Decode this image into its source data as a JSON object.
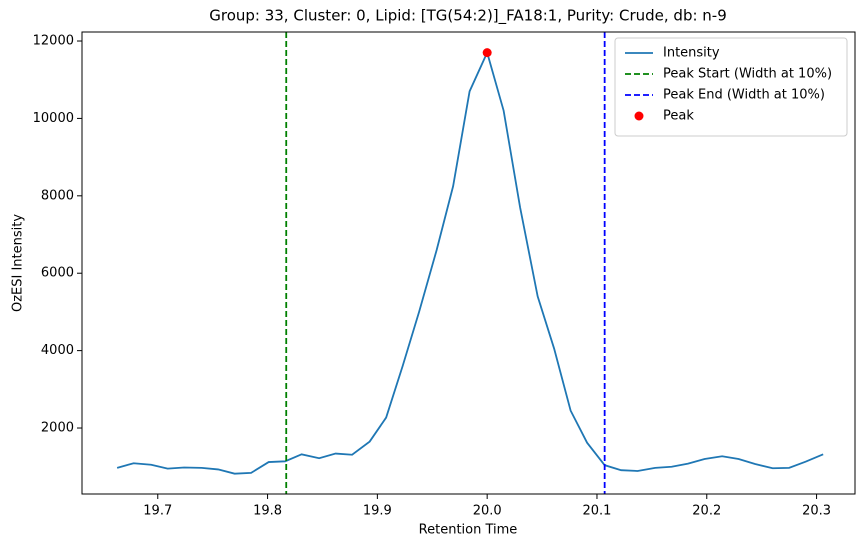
{
  "chart_data": {
    "type": "line",
    "title": "Group: 33, Cluster: 0, Lipid: [TG(54:2)]_FA18:1, Purity: Crude, db: n-9",
    "x_label": "Retention Time",
    "y_label": "OzESI Intensity",
    "xlim": [
      19.631,
      20.335
    ],
    "ylim": [
      295,
      12233
    ],
    "xticks": [
      19.7,
      19.8,
      19.9,
      {
        "value": 20,
        "label": "20.0"
      },
      20.1,
      20.2,
      20.3
    ],
    "yticks": [
      2000,
      4000,
      6000,
      8000,
      10000,
      12000
    ],
    "legend": "upper right",
    "series": [
      {
        "name": "Intensity",
        "color": "#1f77b4",
        "x": [
          19.663,
          19.678,
          19.694,
          19.709,
          19.724,
          19.74,
          19.755,
          19.77,
          19.785,
          19.801,
          19.816,
          19.831,
          19.847,
          19.862,
          19.877,
          19.893,
          19.908,
          19.923,
          19.938,
          19.954,
          19.969,
          19.984,
          20.0,
          20.015,
          20.03,
          20.046,
          20.061,
          20.076,
          20.091,
          20.107,
          20.122,
          20.137,
          20.153,
          20.168,
          20.183,
          20.198,
          20.214,
          20.229,
          20.244,
          20.26,
          20.275,
          20.29,
          20.306
        ],
        "values": [
          970,
          1090,
          1050,
          950,
          980,
          970,
          930,
          820,
          840,
          1120,
          1140,
          1320,
          1220,
          1340,
          1310,
          1650,
          2270,
          3600,
          5000,
          6600,
          8250,
          10700,
          11700,
          10200,
          7700,
          5400,
          4050,
          2450,
          1620,
          1040,
          910,
          890,
          970,
          1000,
          1080,
          1200,
          1270,
          1200,
          1070,
          960,
          970,
          1130,
          1320
        ]
      }
    ],
    "vlines": [
      {
        "name": "Peak Start (Width at 10%)",
        "color": "#008000",
        "x": 19.817
      },
      {
        "name": "Peak End (Width at 10%)",
        "color": "#0000ff",
        "x": 20.107
      }
    ],
    "points": [
      {
        "name": "Peak",
        "color": "#ff0000",
        "x": 20.0,
        "y": 11700
      }
    ]
  }
}
